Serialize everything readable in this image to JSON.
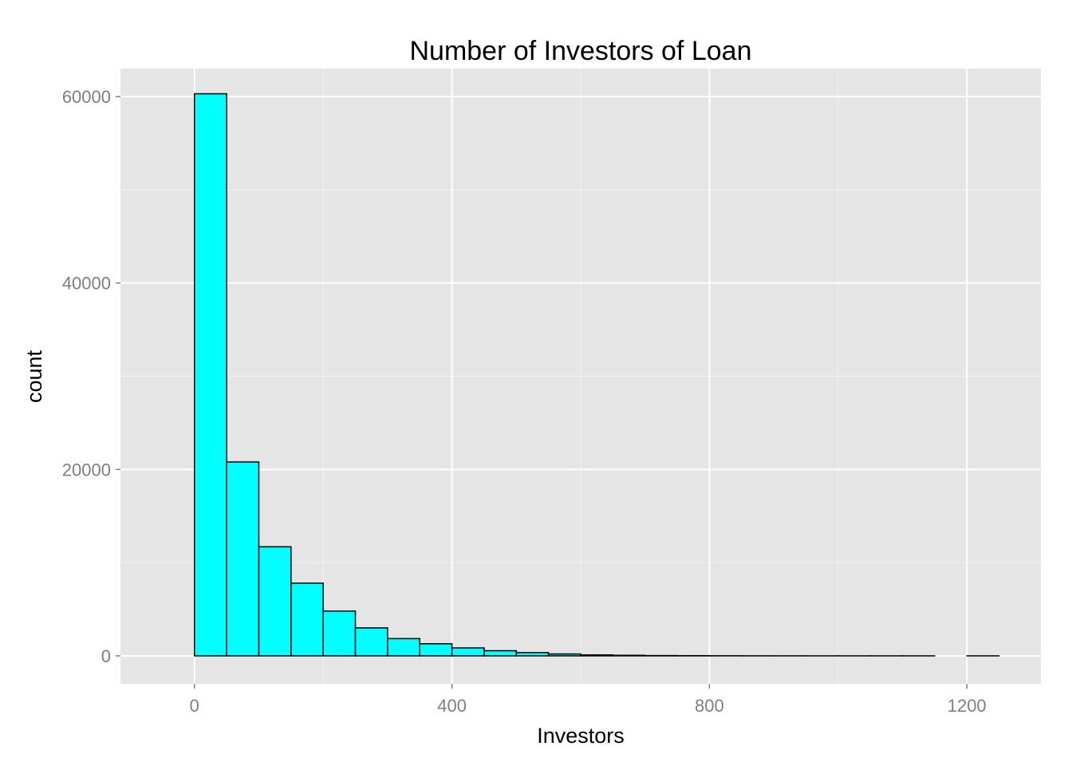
{
  "chart_data": {
    "type": "bar",
    "title": "Number of Investors of Loan",
    "xlabel": "Investors",
    "ylabel": "count",
    "xlim": [
      -115,
      1315
    ],
    "ylim": [
      -3000,
      63000
    ],
    "x_ticks": [
      0,
      400,
      800,
      1200
    ],
    "x_tick_labels": [
      "0",
      "400",
      "800",
      "1200"
    ],
    "y_ticks": [
      0,
      20000,
      40000,
      60000
    ],
    "y_tick_labels": [
      "0",
      "20000",
      "40000",
      "60000"
    ],
    "grid": true,
    "legend": "none",
    "bin_width": 50,
    "bins": [
      {
        "x0": -50,
        "x1": 0,
        "count": 0
      },
      {
        "x0": 0,
        "x1": 50,
        "count": 60300
      },
      {
        "x0": 50,
        "x1": 100,
        "count": 20800
      },
      {
        "x0": 100,
        "x1": 150,
        "count": 11700
      },
      {
        "x0": 150,
        "x1": 200,
        "count": 7800
      },
      {
        "x0": 200,
        "x1": 250,
        "count": 4800
      },
      {
        "x0": 250,
        "x1": 300,
        "count": 3000
      },
      {
        "x0": 300,
        "x1": 350,
        "count": 1850
      },
      {
        "x0": 350,
        "x1": 400,
        "count": 1300
      },
      {
        "x0": 400,
        "x1": 450,
        "count": 850
      },
      {
        "x0": 450,
        "x1": 500,
        "count": 550
      },
      {
        "x0": 500,
        "x1": 550,
        "count": 350
      },
      {
        "x0": 550,
        "x1": 600,
        "count": 200
      },
      {
        "x0": 600,
        "x1": 650,
        "count": 100
      },
      {
        "x0": 650,
        "x1": 700,
        "count": 60
      },
      {
        "x0": 700,
        "x1": 750,
        "count": 30
      },
      {
        "x0": 750,
        "x1": 800,
        "count": 20
      },
      {
        "x0": 800,
        "x1": 850,
        "count": 10
      },
      {
        "x0": 850,
        "x1": 900,
        "count": 5
      },
      {
        "x0": 900,
        "x1": 950,
        "count": 3
      },
      {
        "x0": 950,
        "x1": 1000,
        "count": 2
      },
      {
        "x0": 1000,
        "x1": 1050,
        "count": 1
      },
      {
        "x0": 1050,
        "x1": 1100,
        "count": 1
      },
      {
        "x0": 1100,
        "x1": 1150,
        "count": 1
      },
      {
        "x0": 1150,
        "x1": 1200,
        "count": 0
      },
      {
        "x0": 1200,
        "x1": 1250,
        "count": 1
      }
    ],
    "colors": {
      "panel_background": "#e5e5e5",
      "grid_major": "#ffffff",
      "grid_minor": "#f2f2f2",
      "bar_fill": "#00ffff",
      "bar_outline": "#000000",
      "tick_text": "#7f7f7f"
    }
  }
}
